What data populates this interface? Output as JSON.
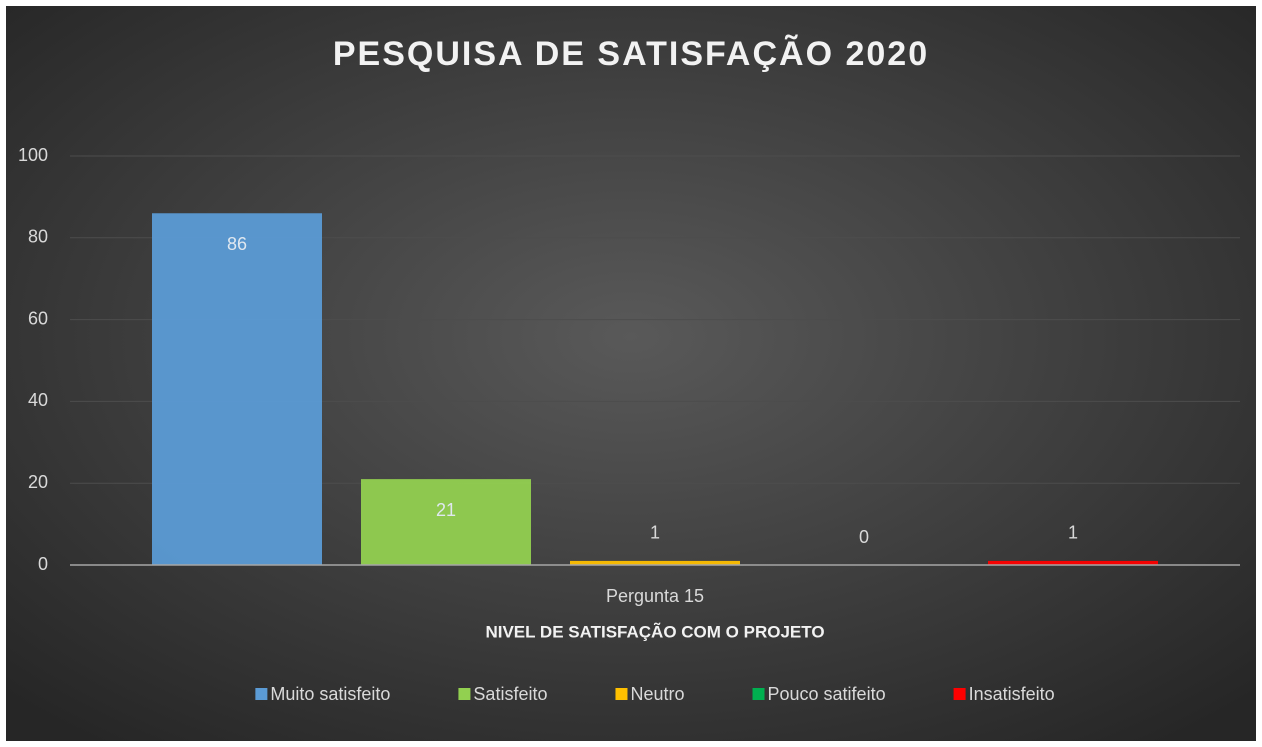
{
  "chart_data": {
    "type": "bar",
    "title": "PESQUISA DE SATISFAÇÃO 2020",
    "categories": [
      "Pergunta 15"
    ],
    "x_label": "NIVEL DE SATISFAÇÃO COM O PROJETO",
    "series": [
      {
        "name": "Muito satisfeito",
        "color": "#5b9bd5",
        "values": [
          86
        ]
      },
      {
        "name": "Satisfeito",
        "color": "#92d050",
        "values": [
          21
        ]
      },
      {
        "name": "Neutro",
        "color": "#ffc000",
        "values": [
          1
        ]
      },
      {
        "name": "Pouco satifeito",
        "color": "#00b050",
        "values": [
          0
        ]
      },
      {
        "name": "Insatisfeito",
        "color": "#ff0000",
        "values": [
          1
        ]
      }
    ],
    "ylim": [
      0,
      100
    ],
    "yticks": [
      0,
      20,
      40,
      60,
      80,
      100
    ],
    "grid": true,
    "legend": "bottom"
  }
}
